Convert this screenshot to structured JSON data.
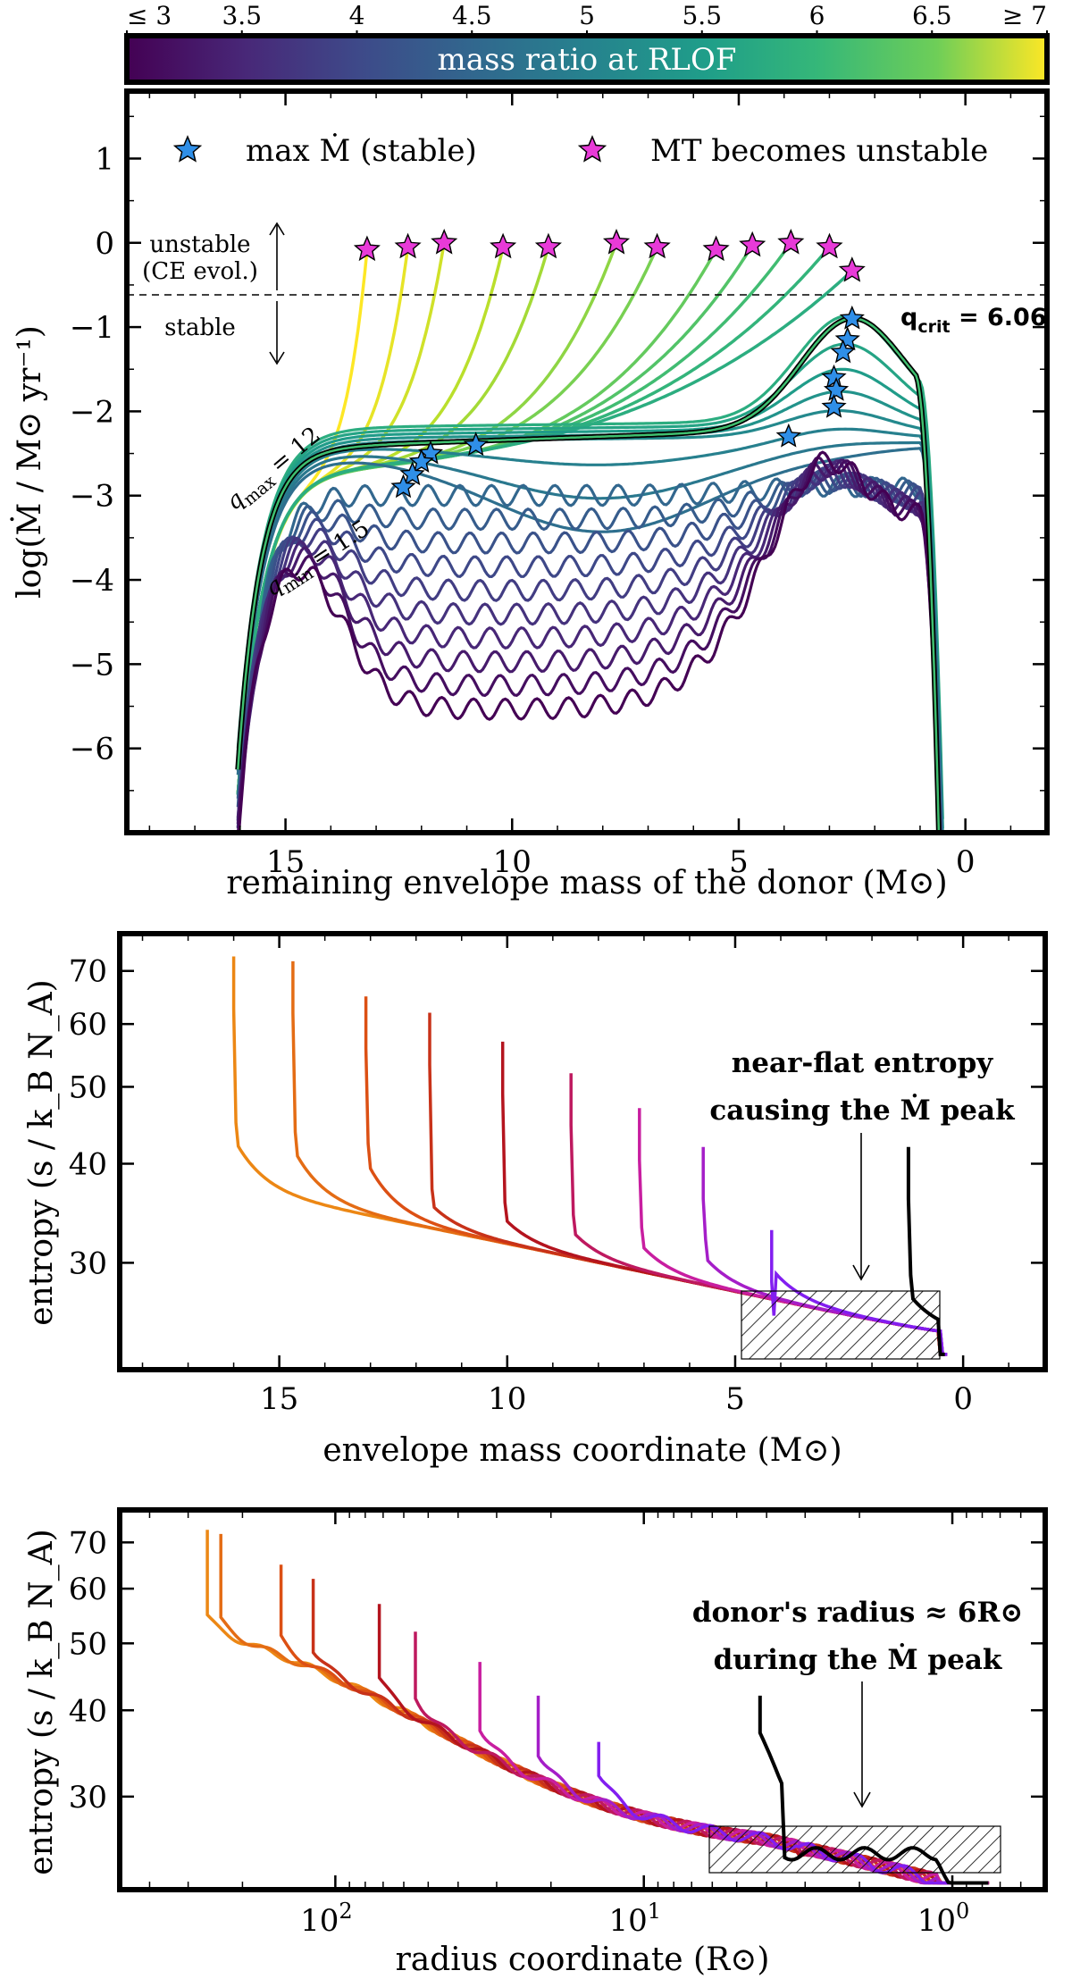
{
  "colorbar": {
    "label": "mass ratio at RLOF",
    "ticks": [
      "≤ 3",
      "3.5",
      "4",
      "4.5",
      "5",
      "5.5",
      "6",
      "6.5",
      "≥ 7"
    ],
    "range": [
      3,
      7
    ],
    "colormap": "viridis"
  },
  "chart_data": [
    {
      "type": "line",
      "panel": "top",
      "title": "",
      "xlabel": "remaining envelope mass of the donor (M⊙)",
      "ylabel": "log(Ṁ / M⊙ yr⁻¹)",
      "xlim": [
        18.5,
        -1.8
      ],
      "ylim": [
        -7,
        1.8
      ],
      "x_inverted": true,
      "x_ticks": [
        "15",
        "10",
        "5",
        "0"
      ],
      "y_ticks": [
        "1",
        "0",
        "−1",
        "−2",
        "−3",
        "−4",
        "−5",
        "−6"
      ],
      "legend": {
        "placement": "top",
        "entries": [
          {
            "label": "max Ṁ (stable)",
            "marker": "star",
            "color": "#2f8fe8"
          },
          {
            "label": "MT becomes unstable",
            "marker": "star",
            "color": "#e83ad8"
          }
        ]
      },
      "annotations": {
        "unstable": "unstable",
        "ce": "(CE evol.)",
        "stable": "stable",
        "qcrit_label": "q",
        "qcrit_sub": "crit",
        "qcrit_value": " = 6.06",
        "qmax_label": "q",
        "qmax_sub": "max",
        "qmax_value": " = 12",
        "qmin_label": "q",
        "qmin_sub": "min",
        "qmin_value": " = 1.5"
      },
      "threshold_line": {
        "y": -0.5,
        "style": "dashed"
      },
      "q_crit": 6.06,
      "unstable_endpoints": [
        {
          "x": 13.2,
          "y": -0.08
        },
        {
          "x": 12.3,
          "y": -0.05
        },
        {
          "x": 11.5,
          "y": 0.0
        },
        {
          "x": 10.2,
          "y": -0.05
        },
        {
          "x": 9.2,
          "y": -0.05
        },
        {
          "x": 7.7,
          "y": 0.0
        },
        {
          "x": 6.8,
          "y": -0.05
        },
        {
          "x": 5.5,
          "y": -0.08
        },
        {
          "x": 4.7,
          "y": -0.03
        },
        {
          "x": 3.85,
          "y": 0.0
        },
        {
          "x": 3.0,
          "y": -0.05
        },
        {
          "x": 2.5,
          "y": -0.33
        }
      ],
      "stable_peaks": [
        {
          "x": 2.5,
          "y": -0.9
        },
        {
          "x": 2.6,
          "y": -1.15
        },
        {
          "x": 2.7,
          "y": -1.3
        },
        {
          "x": 2.9,
          "y": -1.6
        },
        {
          "x": 2.85,
          "y": -1.75
        },
        {
          "x": 2.9,
          "y": -1.95
        },
        {
          "x": 3.9,
          "y": -2.3
        },
        {
          "x": 10.8,
          "y": -2.4
        },
        {
          "x": 11.8,
          "y": -2.5
        },
        {
          "x": 12.0,
          "y": -2.6
        },
        {
          "x": 12.2,
          "y": -2.75
        },
        {
          "x": 12.4,
          "y": -2.9
        }
      ],
      "series_description": "Ṁ tracks for a grid of donor mass ratios from q_min = 1.5 to q_max = 12, coloured by mass ratio at RLOF; black curve = q_crit track"
    },
    {
      "type": "line",
      "panel": "middle",
      "title": "",
      "xlabel": "envelope mass coordinate (M⊙)",
      "ylabel": "entropy (s / k_B N_A)",
      "xlim": [
        18.5,
        -1.8
      ],
      "ylim": [
        22,
        78
      ],
      "y_log": true,
      "x_inverted": true,
      "x_ticks": [
        "15",
        "10",
        "5",
        "0"
      ],
      "y_ticks": [
        "30",
        "40",
        "50",
        "60",
        "70"
      ],
      "annotation": [
        "near-flat entropy",
        "causing the Ṁ peak"
      ],
      "hatched_region": {
        "x": [
          4.8,
          0.4
        ],
        "y": [
          23.5,
          28.8
        ]
      },
      "profile_starts": [
        {
          "x": 16.0,
          "y": 73
        },
        {
          "x": 14.7,
          "y": 72
        },
        {
          "x": 13.1,
          "y": 65
        },
        {
          "x": 11.7,
          "y": 62
        },
        {
          "x": 10.1,
          "y": 57
        },
        {
          "x": 8.6,
          "y": 52
        },
        {
          "x": 7.1,
          "y": 47
        },
        {
          "x": 5.7,
          "y": 42
        },
        {
          "x": 4.2,
          "y": 33
        },
        {
          "x": 1.2,
          "y": 42
        }
      ]
    },
    {
      "type": "line",
      "panel": "bottom",
      "title": "",
      "xlabel": "radius coordinate (R⊙)",
      "ylabel": "entropy (s / k_B N_A)",
      "x_log": true,
      "x_inverted": true,
      "xlim": [
        500,
        0.5
      ],
      "ylim": [
        22,
        78
      ],
      "y_log": true,
      "x_ticks": [
        "10²",
        "10¹",
        "10⁰"
      ],
      "y_ticks": [
        "30",
        "40",
        "50",
        "60",
        "70"
      ],
      "annotation": [
        "donor's radius ≈ 6R⊙",
        "during the Ṁ peak"
      ],
      "hatched_region": {
        "x": [
          6.0,
          0.7
        ],
        "y": [
          23.5,
          27.5
        ]
      }
    }
  ],
  "labels": {
    "top_x_ticks": [
      "15",
      "10",
      "5",
      "0"
    ],
    "mid_x_ticks": [
      "15",
      "10",
      "5",
      "0"
    ],
    "bot_x_ticks": [
      "10",
      "10",
      "10"
    ],
    "bot_x_exps": [
      "2",
      "1",
      "0"
    ]
  }
}
